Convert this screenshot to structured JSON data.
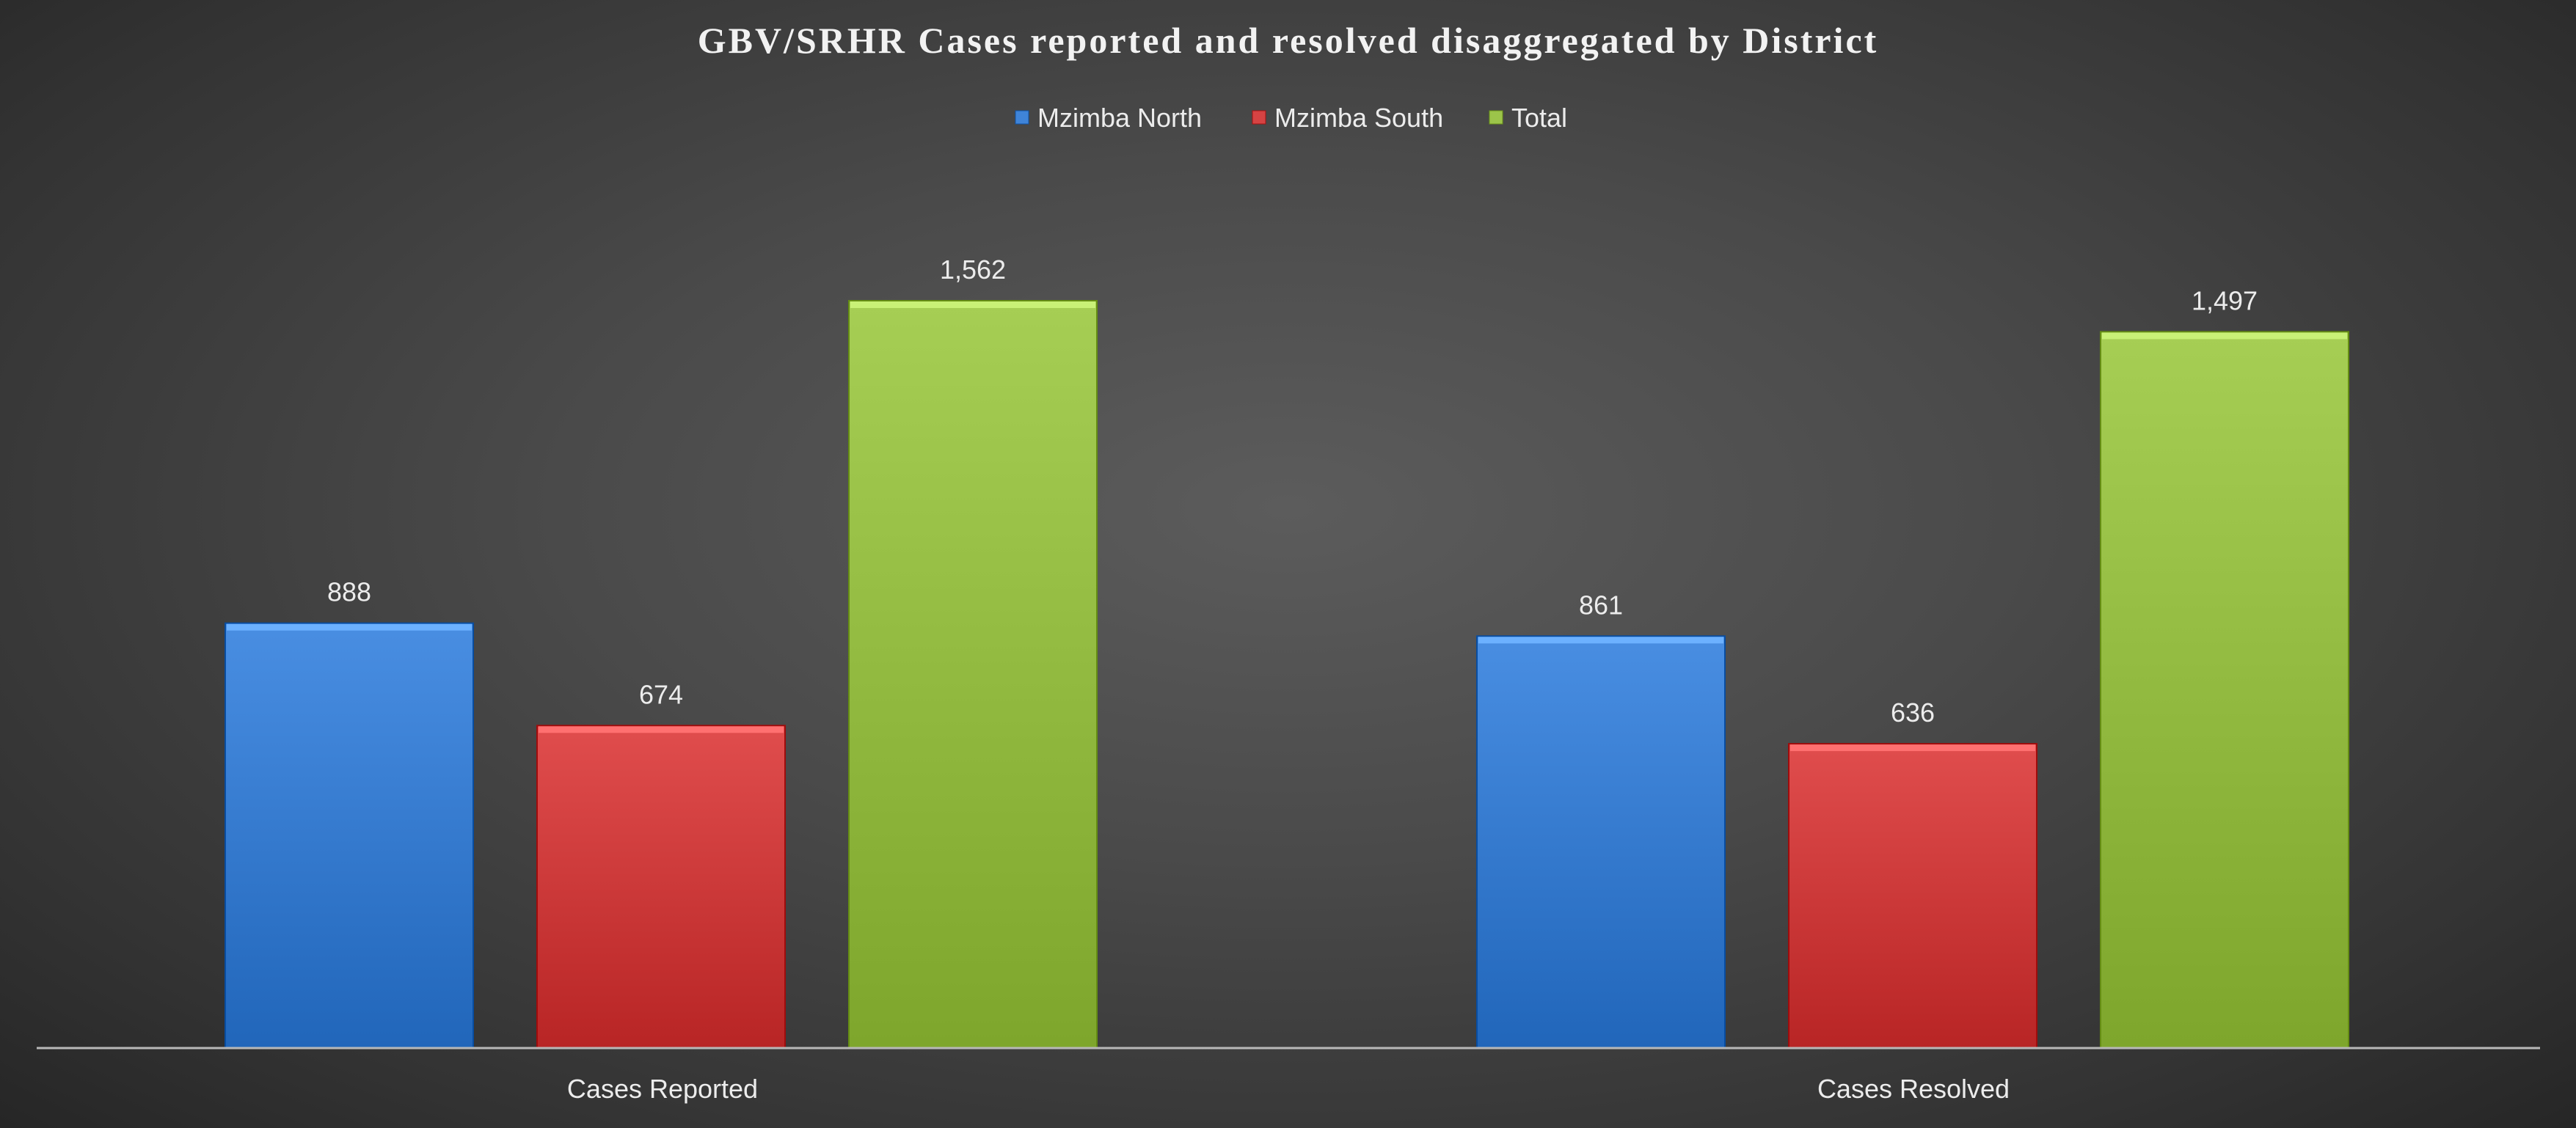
{
  "chart_data": {
    "type": "bar",
    "title": "GBV/SRHR Cases reported and resolved disaggregated by District",
    "categories": [
      "Cases Reported",
      "Cases Resolved"
    ],
    "series": [
      {
        "name": "Mzimba North",
        "values": [
          888,
          861
        ],
        "color": "#3f84d8",
        "value_labels": [
          "888",
          "861"
        ]
      },
      {
        "name": "Mzimba South",
        "values": [
          674,
          636
        ],
        "color": "#d64343",
        "value_labels": [
          "674",
          "636"
        ]
      },
      {
        "name": "Total",
        "values": [
          1562,
          1497
        ],
        "color": "#9cc44a",
        "value_labels": [
          "1,562",
          "1,497"
        ]
      }
    ],
    "ylim": [
      0,
      1800
    ],
    "xlabel": "",
    "ylabel": "",
    "grid": false,
    "legend_position": "top"
  }
}
